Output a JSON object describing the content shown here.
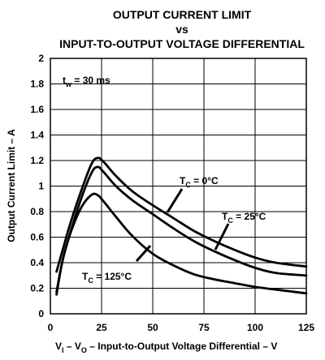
{
  "chart_data": {
    "type": "line",
    "title": [
      "OUTPUT CURRENT LIMIT",
      "vs",
      "INPUT-TO-OUTPUT VOLTAGE DIFFERENTIAL"
    ],
    "xlabel": {
      "parts": [
        {
          "text": "V",
          "sub": false
        },
        {
          "text": "I",
          "sub": true
        },
        {
          "text": " – V",
          "sub": false
        },
        {
          "text": "O",
          "sub": true
        },
        {
          "text": " – Input-to-Output Voltage Differential – V",
          "sub": false
        }
      ]
    },
    "ylabel": "Output Current Limit – A",
    "xlim": [
      0,
      125
    ],
    "ylim": [
      0,
      2
    ],
    "xticks": [
      0,
      25,
      50,
      75,
      100,
      125
    ],
    "xtick_labels": [
      "0",
      "25",
      "50",
      "75",
      "100",
      "125"
    ],
    "yticks": [
      0,
      0.2,
      0.4,
      0.6,
      0.8,
      1,
      1.2,
      1.4,
      1.6,
      1.8,
      2
    ],
    "ytick_labels": [
      "0",
      "0.2",
      "0.4",
      "0.6",
      "0.8",
      "1",
      "1.2",
      "1.4",
      "1.6",
      "1.8",
      "2"
    ],
    "grid": true,
    "annotation": {
      "main": "t",
      "sub": "w",
      "rest": " = 30 ms"
    },
    "series": [
      {
        "name": "TC = 0°C",
        "label": {
          "main": "T",
          "sub": "C",
          "rest": " =  0°C"
        },
        "x": [
          3,
          6,
          10,
          15,
          20,
          23,
          26,
          32,
          40,
          50,
          60,
          70,
          80,
          90,
          100,
          110,
          125
        ],
        "y": [
          0.33,
          0.5,
          0.72,
          0.96,
          1.17,
          1.22,
          1.19,
          1.08,
          0.96,
          0.85,
          0.75,
          0.65,
          0.57,
          0.5,
          0.44,
          0.4,
          0.37
        ]
      },
      {
        "name": "TC = 25°C",
        "label": {
          "main": "T",
          "sub": "C",
          "rest": " =  25°C"
        },
        "x": [
          3,
          6,
          10,
          15,
          20,
          23,
          26,
          32,
          40,
          50,
          60,
          70,
          80,
          90,
          100,
          110,
          125
        ],
        "y": [
          0.17,
          0.42,
          0.65,
          0.9,
          1.1,
          1.15,
          1.11,
          1.0,
          0.89,
          0.78,
          0.67,
          0.57,
          0.49,
          0.42,
          0.36,
          0.32,
          0.3
        ]
      },
      {
        "name": "TC = 125°C",
        "label": {
          "main": "T",
          "sub": "C",
          "rest": " = 125°C"
        },
        "x": [
          3,
          6,
          10,
          15,
          20,
          23,
          26,
          32,
          40,
          50,
          60,
          70,
          80,
          90,
          100,
          110,
          125
        ],
        "y": [
          0.15,
          0.42,
          0.64,
          0.83,
          0.93,
          0.93,
          0.88,
          0.76,
          0.61,
          0.47,
          0.38,
          0.31,
          0.27,
          0.24,
          0.21,
          0.19,
          0.16
        ]
      }
    ]
  }
}
